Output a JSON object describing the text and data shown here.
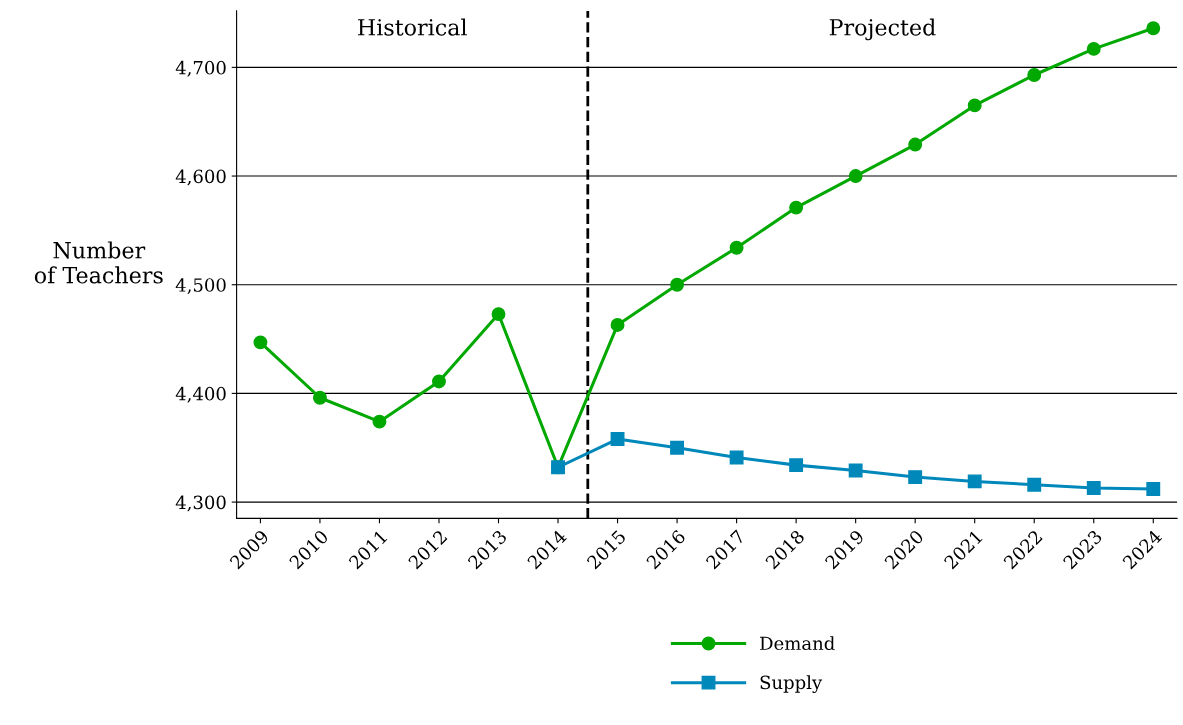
{
  "chart_data": {
    "type": "line",
    "ylabel": "Number\nof Teachers",
    "x": [
      2009,
      2010,
      2011,
      2012,
      2013,
      2014,
      2015,
      2016,
      2017,
      2018,
      2019,
      2020,
      2021,
      2022,
      2023,
      2024
    ],
    "xlim": [
      2008.6,
      2024.4
    ],
    "xticks": [
      2009,
      2010,
      2011,
      2012,
      2013,
      2014,
      2015,
      2016,
      2017,
      2018,
      2019,
      2020,
      2021,
      2022,
      2023,
      2024
    ],
    "ylim": [
      4285,
      4752
    ],
    "yticks": [
      {
        "value": 4300,
        "label": "4,300"
      },
      {
        "value": 4400,
        "label": "4,400"
      },
      {
        "value": 4500,
        "label": "4,500"
      },
      {
        "value": 4600,
        "label": "4,600"
      },
      {
        "value": 4700,
        "label": "4,700"
      }
    ],
    "series": [
      {
        "name": "Demand",
        "color": "#00a800",
        "marker": "circle",
        "values": [
          4447,
          4396,
          4374,
          4411,
          4473,
          4332,
          4463,
          4500,
          4534,
          4571,
          4600,
          4629,
          4665,
          4693,
          4717,
          4736
        ]
      },
      {
        "name": "Supply",
        "color": "#0088bb",
        "marker": "square",
        "values": [
          null,
          null,
          null,
          null,
          null,
          4332,
          4358,
          4350,
          4341,
          4334,
          4329,
          4323,
          4319,
          4316,
          4313,
          4312
        ]
      }
    ],
    "ref_lines": [
      {
        "axis": "x",
        "value": 2014.5,
        "color": "#000000",
        "line_style": "dashed"
      }
    ],
    "annotations": [
      "Historical",
      "Projected"
    ],
    "grid": "y",
    "legend": "bottom",
    "line_style": "solid"
  }
}
